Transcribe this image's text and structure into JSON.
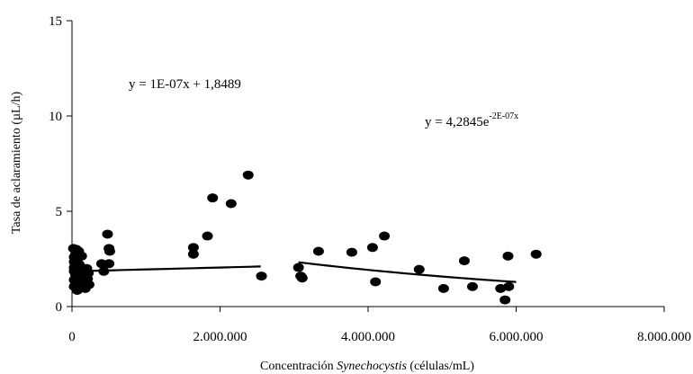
{
  "chart_data": {
    "type": "scatter",
    "title": "",
    "xlabel_prefix": "Concentración ",
    "xlabel_italic": "Synechocystis",
    "xlabel_suffix": "  (células/mL)",
    "ylabel": "Tasa de aclaramiento (µL/h)",
    "xlim": [
      0,
      8000000
    ],
    "ylim": [
      0,
      15
    ],
    "x_ticks": [
      0,
      2000000,
      4000000,
      6000000,
      8000000
    ],
    "x_tick_labels": [
      "0",
      "2.000.000",
      "4.000.000",
      "6.000.000",
      "8.000.000"
    ],
    "y_ticks": [
      0,
      5,
      10,
      15
    ],
    "y_tick_labels": [
      "0",
      "5",
      "10",
      "15"
    ],
    "grid": false,
    "legend": "none",
    "series": [
      {
        "values": [
          [
            20000,
            3.05
          ],
          [
            30000,
            2.6
          ],
          [
            30000,
            2.35
          ],
          [
            30000,
            2.05
          ],
          [
            30000,
            1.85
          ],
          [
            30000,
            1.4
          ],
          [
            30000,
            1.05
          ],
          [
            50000,
            2.75
          ],
          [
            50000,
            1.65
          ],
          [
            60000,
            3.0
          ],
          [
            70000,
            2.45
          ],
          [
            70000,
            1.75
          ],
          [
            70000,
            1.2
          ],
          [
            70000,
            0.85
          ],
          [
            90000,
            2.9
          ],
          [
            100000,
            2.2
          ],
          [
            100000,
            1.9
          ],
          [
            110000,
            1.5
          ],
          [
            120000,
            1.0
          ],
          [
            130000,
            2.65
          ],
          [
            150000,
            1.7
          ],
          [
            170000,
            1.35
          ],
          [
            180000,
            0.95
          ],
          [
            200000,
            2.0
          ],
          [
            210000,
            1.45
          ],
          [
            220000,
            1.75
          ],
          [
            230000,
            1.15
          ],
          [
            400000,
            2.25
          ],
          [
            430000,
            1.85
          ],
          [
            480000,
            3.8
          ],
          [
            500000,
            2.25
          ],
          [
            500000,
            3.05
          ],
          [
            510000,
            2.9
          ],
          [
            1640000,
            3.1
          ],
          [
            1640000,
            2.75
          ],
          [
            1830000,
            3.7
          ],
          [
            1900000,
            5.7
          ],
          [
            2150000,
            5.4
          ],
          [
            2380000,
            6.9
          ],
          [
            2560000,
            1.6
          ],
          [
            3060000,
            2.05
          ],
          [
            3090000,
            1.6
          ],
          [
            3110000,
            1.5
          ],
          [
            3330000,
            2.9
          ],
          [
            3780000,
            2.85
          ],
          [
            4060000,
            3.1
          ],
          [
            4100000,
            1.3
          ],
          [
            4220000,
            3.7
          ],
          [
            4690000,
            1.95
          ],
          [
            5020000,
            0.95
          ],
          [
            5300000,
            2.4
          ],
          [
            5410000,
            1.05
          ],
          [
            5790000,
            0.95
          ],
          [
            5850000,
            0.35
          ],
          [
            5890000,
            2.65
          ],
          [
            5900000,
            1.05
          ],
          [
            6270000,
            2.75
          ]
        ]
      }
    ],
    "trendlines": [
      {
        "type": "linear",
        "equation_text": "y = 1E-07x + 1,8489",
        "slope": 1e-07,
        "intercept": 1.8489,
        "x_range": [
          0,
          2550000
        ]
      },
      {
        "type": "exponential",
        "equation_base": "y = 4,2845e",
        "equation_exponent": "-2E-07x",
        "a": 4.2845,
        "b": -2e-07,
        "x_range": [
          3060000,
          6000000
        ]
      }
    ]
  }
}
